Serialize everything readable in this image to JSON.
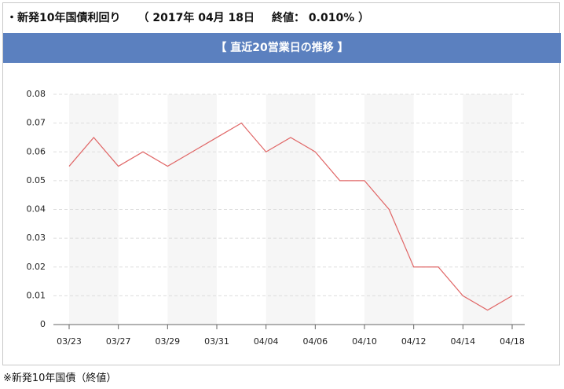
{
  "header": {
    "title": "・新発10年国債利回り",
    "date": "（ 2017年 04月 18日",
    "close": "終値： 0.010% ）"
  },
  "chart_data": {
    "type": "line",
    "title": "【 直近20営業日の推移 】",
    "categories": [
      "03/23",
      null,
      "03/27",
      null,
      "03/29",
      null,
      "03/31",
      null,
      "04/04",
      null,
      "04/06",
      null,
      "04/10",
      null,
      "04/12",
      null,
      "04/14",
      null,
      "04/18"
    ],
    "series": [
      {
        "color": "#e06666",
        "values": [
          0.055,
          0.065,
          0.055,
          0.06,
          0.055,
          0.06,
          0.065,
          0.07,
          0.06,
          0.065,
          0.06,
          0.05,
          0.05,
          0.04,
          0.02,
          0.02,
          0.01,
          0.005,
          0.01
        ]
      }
    ],
    "ylim": [
      0,
      0.08
    ],
    "yticks": [
      0,
      0.01,
      0.02,
      0.03,
      0.04,
      0.05,
      0.06,
      0.07,
      0.08
    ],
    "grid": true
  },
  "footnote": "※新発10年国債（終値）"
}
